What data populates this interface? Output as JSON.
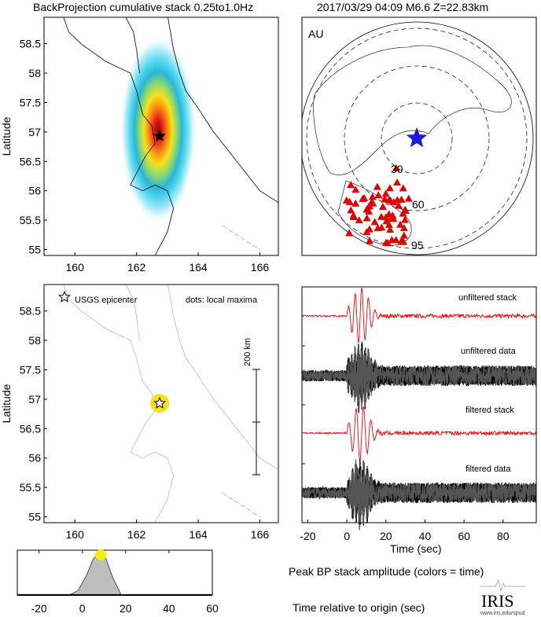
{
  "header": {
    "title_left": "BackProjection cumulative stack 0.25to1.0Hz",
    "title_right": "2017/03/29 04:09  M6.6  Z=22.83km"
  },
  "chart_data": [
    {
      "type": "heatmap",
      "panel": "cumulative-stack-map",
      "ylabel": "Latitude",
      "xticks": [
        160,
        162,
        164,
        166
      ],
      "yticks": [
        55,
        55.5,
        56,
        56.5,
        57,
        57.5,
        58,
        58.5
      ],
      "xlim": [
        159.0,
        166.6
      ],
      "ylim": [
        54.9,
        58.95
      ],
      "peak": {
        "lon": 162.7,
        "lat": 56.93
      },
      "epicenter": {
        "lon": 162.75,
        "lat": 56.93,
        "marker": "star"
      },
      "colormap": [
        "#e8fbff",
        "#b5eef8",
        "#55d8ee",
        "#2ab7d9",
        "#8bd96a",
        "#f6e21a",
        "#f78a12",
        "#e8231a",
        "#8a0a0a"
      ]
    },
    {
      "type": "scatter",
      "panel": "station-map",
      "label": "AU",
      "distance_labels": [
        "30",
        "60",
        "95"
      ],
      "epicenter_color": "#1a1ad8",
      "station_color": "#e00000",
      "station_marker": "triangle"
    },
    {
      "type": "scatter",
      "panel": "local-maxima-map",
      "ylabel": "Latitude",
      "xticks": [
        160,
        162,
        164,
        166
      ],
      "yticks": [
        55,
        55.5,
        56,
        56.5,
        57,
        57.5,
        58,
        58.5
      ],
      "xlim": [
        159.0,
        166.6
      ],
      "ylim": [
        54.9,
        58.95
      ],
      "legend": {
        "epicenter": "USGS epicenter",
        "dots": "dots: local maxima"
      },
      "scale_bar": "200 km",
      "points": [
        {
          "lon": 162.75,
          "lat": 56.93,
          "time": 8,
          "color": "#f6e21a"
        }
      ],
      "epicenter": {
        "lon": 162.75,
        "lat": 56.93
      }
    },
    {
      "type": "line",
      "panel": "waveforms",
      "xlabel": "Time (sec)",
      "xticks": [
        -20,
        0,
        20,
        40,
        60,
        80
      ],
      "xlim": [
        -23,
        97
      ],
      "series": [
        {
          "name": "unfiltered stack",
          "color": "#ff0000"
        },
        {
          "name": "unfiltered data",
          "color": "#000000"
        },
        {
          "name": "filtered stack",
          "color": "#ff0000"
        },
        {
          "name": "filtered data",
          "color": "#000000"
        }
      ]
    },
    {
      "type": "area",
      "panel": "peak-amplitude",
      "title": "Peak BP stack amplitude (colors = time)",
      "xlabel": "Time relative to origin (sec)",
      "xticks": [
        -20,
        0,
        20,
        40,
        60
      ],
      "xlim": [
        -30,
        60
      ],
      "x": [
        -30,
        -6,
        -2,
        2,
        5,
        8,
        11,
        14,
        18,
        60
      ],
      "values": [
        0,
        0,
        0.1,
        0.45,
        0.8,
        0.95,
        0.8,
        0.4,
        0,
        0
      ],
      "peak_marker": {
        "x": 8.5,
        "color": "#f6f000"
      }
    }
  ],
  "logo": {
    "text": "IRIS",
    "url_text": "www.iris.edu/spud"
  }
}
